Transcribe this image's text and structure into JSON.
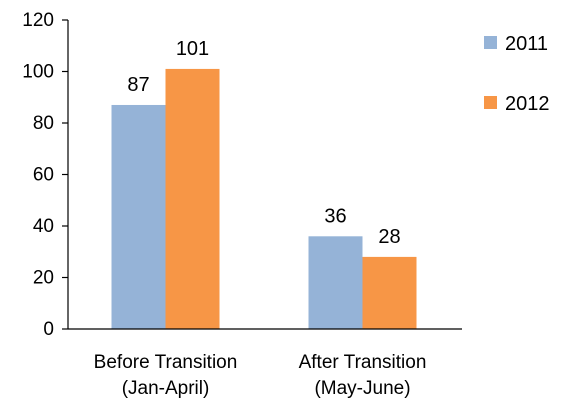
{
  "chart_data": {
    "type": "bar",
    "title": "",
    "xlabel": "",
    "ylabel": "",
    "ylim": [
      0,
      120
    ],
    "yticks": [
      0,
      20,
      40,
      60,
      80,
      100,
      120
    ],
    "grid": false,
    "legend_position": "right",
    "categories": [
      [
        "Before Transition",
        "(Jan-April)"
      ],
      [
        "After Transition",
        "(May-June)"
      ]
    ],
    "series": [
      {
        "name": "2011",
        "values": [
          87,
          36
        ],
        "color": "#95b3d7"
      },
      {
        "name": "2012",
        "values": [
          101,
          28
        ],
        "color": "#f79646"
      }
    ]
  }
}
